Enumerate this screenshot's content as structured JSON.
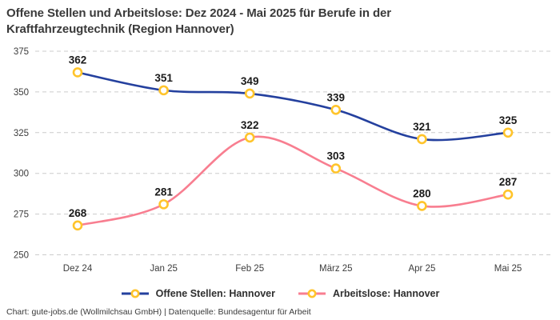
{
  "header": {
    "title": "Offene Stellen und Arbeitslose: Dez 2024 - Mai 2025 für Berufe in der Kraftfahrzeugtechnik (Region Hannover)"
  },
  "footer": {
    "credit": "Chart: gute-jobs.de (Wollmilchsau GmbH) | Datenquelle: Bundesagentur für Arbeit"
  },
  "chart_data": {
    "type": "line",
    "title": "Offene Stellen und Arbeitslose: Dez 2024 - Mai 2025 für Berufe in der Kraftfahrzeugtechnik (Region Hannover)",
    "categories": [
      "Dez 24",
      "Jan 25",
      "Feb 25",
      "März 25",
      "Apr 25",
      "Mai 25"
    ],
    "series": [
      {
        "name": "Offene Stellen: Hannover",
        "values": [
          362,
          351,
          349,
          339,
          321,
          325
        ],
        "color": "#24409E"
      },
      {
        "name": "Arbeitslose: Hannover",
        "values": [
          268,
          281,
          322,
          303,
          280,
          287
        ],
        "color": "#F87E90"
      }
    ],
    "marker_color": "#FFC42B",
    "marker_fill": "#FFFFFF",
    "grid_color": "#CCCCCC",
    "ylim": [
      250,
      375
    ],
    "yticks": [
      250,
      275,
      300,
      325,
      350,
      375
    ],
    "xlabel": "",
    "ylabel": "",
    "grid": "horizontal-dashed",
    "curve": "smooth",
    "value_labels": true,
    "legend_position": "bottom"
  }
}
